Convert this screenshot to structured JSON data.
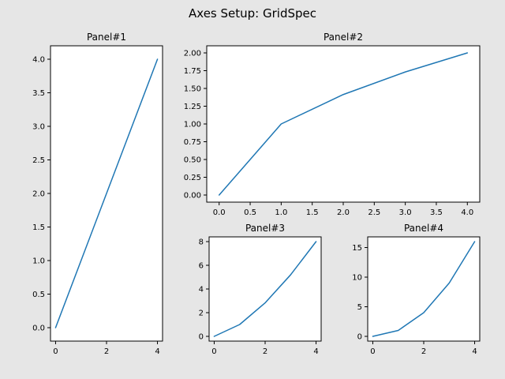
{
  "title": "Axes Setup: GridSpec",
  "colors": {
    "figure_bg": "#e6e6e6",
    "axes_bg": "#ffffff",
    "series": "#1f77b4"
  },
  "chart_data": [
    {
      "type": "line",
      "title": "Panel#1",
      "x": [
        0,
        1,
        2,
        3,
        4
      ],
      "y": [
        0,
        1,
        2,
        3,
        4
      ],
      "xlim": [
        -0.2,
        4.2
      ],
      "ylim": [
        -0.2,
        4.2
      ],
      "xticks": [
        0,
        2,
        4
      ],
      "xtick_labels": [
        "0",
        "2",
        "4"
      ],
      "yticks": [
        0,
        0.5,
        1,
        1.5,
        2,
        2.5,
        3,
        3.5,
        4
      ],
      "ytick_labels": [
        "0.0",
        "0.5",
        "1.0",
        "1.5",
        "2.0",
        "2.5",
        "3.0",
        "3.5",
        "4.0"
      ],
      "grid": false
    },
    {
      "type": "line",
      "title": "Panel#2",
      "x": [
        0,
        1,
        2,
        3,
        4
      ],
      "y": [
        0,
        1,
        1.414,
        1.732,
        2
      ],
      "xlim": [
        -0.2,
        4.2
      ],
      "ylim": [
        -0.1,
        2.1
      ],
      "xticks": [
        0,
        0.5,
        1,
        1.5,
        2,
        2.5,
        3,
        3.5,
        4
      ],
      "xtick_labels": [
        "0.0",
        "0.5",
        "1.0",
        "1.5",
        "2.0",
        "2.5",
        "3.0",
        "3.5",
        "4.0"
      ],
      "yticks": [
        0,
        0.25,
        0.5,
        0.75,
        1,
        1.25,
        1.5,
        1.75,
        2
      ],
      "ytick_labels": [
        "0.00",
        "0.25",
        "0.50",
        "0.75",
        "1.00",
        "1.25",
        "1.50",
        "1.75",
        "2.00"
      ],
      "grid": false
    },
    {
      "type": "line",
      "title": "Panel#3",
      "x": [
        0,
        1,
        2,
        3,
        4
      ],
      "y": [
        0,
        1,
        2.828,
        5.196,
        8
      ],
      "xlim": [
        -0.2,
        4.2
      ],
      "ylim": [
        -0.4,
        8.4
      ],
      "xticks": [
        0,
        2,
        4
      ],
      "xtick_labels": [
        "0",
        "2",
        "4"
      ],
      "yticks": [
        0,
        2,
        4,
        6,
        8
      ],
      "ytick_labels": [
        "0",
        "2",
        "4",
        "6",
        "8"
      ],
      "grid": false
    },
    {
      "type": "line",
      "title": "Panel#4",
      "x": [
        0,
        1,
        2,
        3,
        4
      ],
      "y": [
        0,
        1,
        4,
        9,
        16
      ],
      "xlim": [
        -0.2,
        4.2
      ],
      "ylim": [
        -0.8,
        16.8
      ],
      "xticks": [
        0,
        2,
        4
      ],
      "xtick_labels": [
        "0",
        "2",
        "4"
      ],
      "yticks": [
        0,
        5,
        10,
        15
      ],
      "ytick_labels": [
        "0",
        "5",
        "10",
        "15"
      ],
      "grid": false
    }
  ]
}
